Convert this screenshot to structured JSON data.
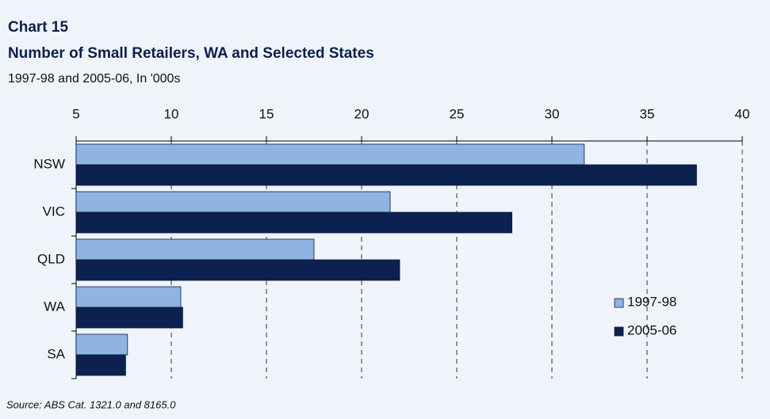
{
  "chart_data": {
    "type": "bar",
    "orientation": "horizontal",
    "title": "Chart 15",
    "subtitle": "Number of Small Retailers, WA and Selected States",
    "subtitle2": "1997-98 and 2005-06, In '000s",
    "source": "Source: ABS Cat. 1321.0 and 8165.0",
    "categories": [
      "NSW",
      "VIC",
      "QLD",
      "WA",
      "SA"
    ],
    "series": [
      {
        "name": "1997-98",
        "color": "#8fb4e3",
        "values": [
          31.7,
          21.5,
          17.5,
          10.5,
          7.7
        ]
      },
      {
        "name": "2005-06",
        "color": "#0c2150",
        "values": [
          37.6,
          27.9,
          22.0,
          10.6,
          7.6
        ]
      }
    ],
    "xlim": [
      5,
      40
    ],
    "xticks": [
      5,
      10,
      15,
      20,
      25,
      30,
      35,
      40
    ],
    "grid": true
  }
}
